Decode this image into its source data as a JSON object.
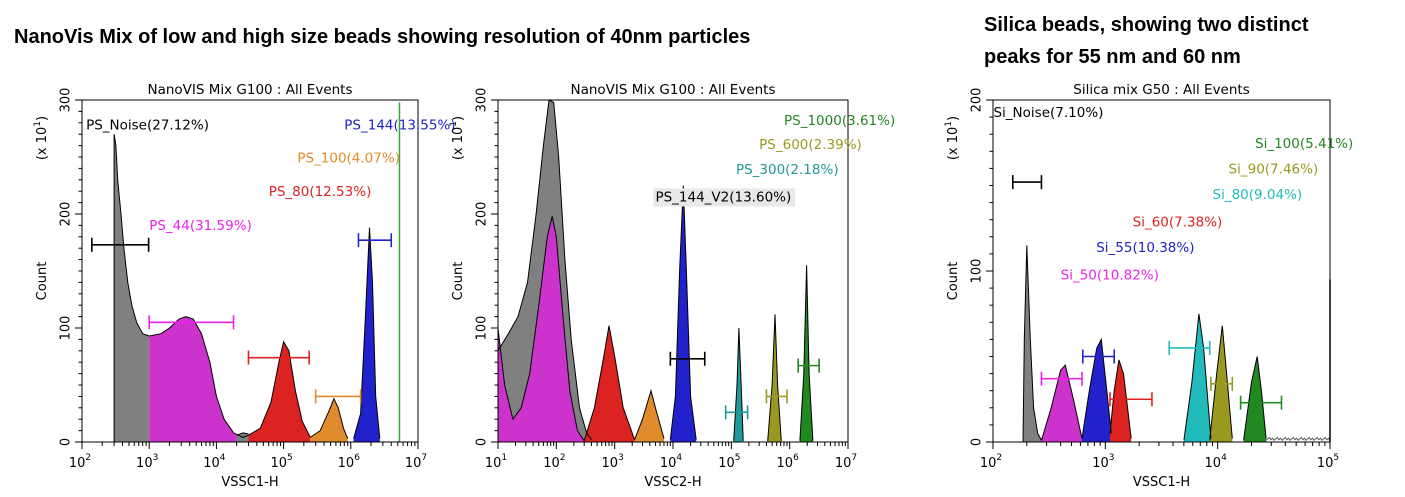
{
  "headings": {
    "left": "NanoVis Mix of low and high size beads showing resolution of 40nm particles",
    "right_line1": "Silica beads, showing two distinct",
    "right_line2": "peaks for 55 nm and 60 nm"
  },
  "chart_data": [
    {
      "type": "area",
      "title": "NanoVIS Mix G100 : All Events",
      "xlabel": "VSSC1-H",
      "ylabel": "Count",
      "y_multiplier_label": "(x 10^1)",
      "x_scale": "log",
      "xlim": [
        100,
        10000000
      ],
      "ylim": [
        0,
        300
      ],
      "x_tick_exponents": [
        2,
        3,
        4,
        5,
        6,
        7
      ],
      "y_ticks": [
        0,
        100,
        200,
        300
      ],
      "grid": false,
      "fills": [
        {
          "color": "#808080",
          "x0": 300,
          "x1": 1000,
          "points": [
            [
              300,
              0
            ],
            [
              300,
              270
            ],
            [
              320,
              260
            ],
            [
              340,
              230
            ],
            [
              380,
              200
            ],
            [
              420,
              170
            ],
            [
              480,
              140
            ],
            [
              550,
              120
            ],
            [
              650,
              105
            ],
            [
              800,
              95
            ],
            [
              1000,
              93
            ]
          ]
        },
        {
          "color": "#cc33cc",
          "x0": 1000,
          "x1": 30000,
          "points": [
            [
              1000,
              93
            ],
            [
              1500,
              95
            ],
            [
              2000,
              100
            ],
            [
              2800,
              108
            ],
            [
              3500,
              110
            ],
            [
              4500,
              108
            ],
            [
              6000,
              95
            ],
            [
              8000,
              70
            ],
            [
              10000,
              40
            ],
            [
              13000,
              20
            ],
            [
              18000,
              8
            ],
            [
              25000,
              4
            ],
            [
              30000,
              6
            ]
          ]
        },
        {
          "color": "#808080",
          "x0": 20000,
          "x1": 30000,
          "points": [
            [
              20000,
              6
            ],
            [
              25000,
              8
            ],
            [
              30000,
              7
            ]
          ]
        },
        {
          "color": "#dd2222",
          "x0": 30000,
          "x1": 250000,
          "points": [
            [
              30000,
              6
            ],
            [
              45000,
              12
            ],
            [
              65000,
              35
            ],
            [
              85000,
              70
            ],
            [
              100000,
              88
            ],
            [
              120000,
              80
            ],
            [
              150000,
              45
            ],
            [
              190000,
              18
            ],
            [
              250000,
              4
            ]
          ]
        },
        {
          "color": "#e08c2c",
          "x0": 250000,
          "x1": 900000,
          "points": [
            [
              250000,
              4
            ],
            [
              350000,
              10
            ],
            [
              480000,
              28
            ],
            [
              560000,
              38
            ],
            [
              650000,
              30
            ],
            [
              780000,
              12
            ],
            [
              900000,
              3
            ]
          ]
        },
        {
          "color": "#2222cc",
          "x0": 1100000,
          "x1": 2700000,
          "points": [
            [
              1100000,
              3
            ],
            [
              1400000,
              25
            ],
            [
              1650000,
              110
            ],
            [
              1900000,
              188
            ],
            [
              2100000,
              140
            ],
            [
              2350000,
              40
            ],
            [
              2700000,
              3
            ]
          ]
        }
      ],
      "outline_color": "#000000",
      "vertical_line": {
        "x": 5300000,
        "y_top": 298,
        "color": "#33aa33"
      },
      "gates": [
        {
          "label": "PS_Noise(27.12%)",
          "color": "#000000",
          "label_x": 115,
          "label_y": 274,
          "bar_x0": 140,
          "bar_x1": 980,
          "bar_y": 173
        },
        {
          "label": "PS_144(13.55%)",
          "color": "#2222cc",
          "label_x": 800000,
          "label_y": 274,
          "bar_x0": 1300000,
          "bar_x1": 4000000,
          "bar_y": 177
        },
        {
          "label": "PS_100(4.07%)",
          "color": "#e08c2c",
          "label_x": 160000,
          "label_y": 245,
          "bar_x0": 300000,
          "bar_x1": 1400000,
          "bar_y": 40
        },
        {
          "label": "PS_80(12.53%)",
          "color": "#dd2222",
          "label_x": 60000,
          "label_y": 216,
          "bar_x0": 30000,
          "bar_x1": 240000,
          "bar_y": 74
        },
        {
          "label": "PS_44(31.59%)",
          "color": "#ee22ee",
          "label_x": 1000,
          "label_y": 186,
          "bar_x0": 1000,
          "bar_x1": 18000,
          "bar_y": 105
        }
      ]
    },
    {
      "type": "area",
      "title": "NanoVIS Mix G100 : All Events",
      "xlabel": "VSSC2-H",
      "ylabel": "Count",
      "y_multiplier_label": "(x 10^1)",
      "x_scale": "log",
      "xlim": [
        10,
        10000000
      ],
      "ylim": [
        0,
        300
      ],
      "x_tick_exponents": [
        1,
        2,
        3,
        4,
        5,
        6,
        7
      ],
      "y_ticks": [
        0,
        100,
        200,
        300
      ],
      "grid": false,
      "fills": [
        {
          "color": "#808080",
          "x0": 10,
          "x1": 400,
          "points": [
            [
              10,
              0
            ],
            [
              10,
              80
            ],
            [
              15,
              95
            ],
            [
              22,
              110
            ],
            [
              32,
              140
            ],
            [
              45,
              200
            ],
            [
              60,
              260
            ],
            [
              75,
              300
            ],
            [
              90,
              298
            ],
            [
              110,
              250
            ],
            [
              140,
              160
            ],
            [
              180,
              90
            ],
            [
              250,
              30
            ],
            [
              330,
              8
            ],
            [
              400,
              2
            ]
          ]
        },
        {
          "color": "#cc33cc",
          "x0": 10,
          "x1": 300,
          "points": [
            [
              10,
              0
            ],
            [
              10,
              100
            ],
            [
              13,
              50
            ],
            [
              18,
              20
            ],
            [
              25,
              30
            ],
            [
              35,
              60
            ],
            [
              50,
              120
            ],
            [
              70,
              180
            ],
            [
              85,
              198
            ],
            [
              100,
              180
            ],
            [
              130,
              110
            ],
            [
              170,
              45
            ],
            [
              230,
              10
            ],
            [
              300,
              1
            ]
          ]
        },
        {
          "color": "#dd2222",
          "x0": 300,
          "x1": 2200,
          "points": [
            [
              300,
              1
            ],
            [
              450,
              30
            ],
            [
              650,
              75
            ],
            [
              800,
              102
            ],
            [
              1000,
              75
            ],
            [
              1400,
              30
            ],
            [
              2200,
              2
            ]
          ]
        },
        {
          "color": "#e08c2c",
          "x0": 2200,
          "x1": 7000,
          "points": [
            [
              2200,
              2
            ],
            [
              3000,
              20
            ],
            [
              4200,
              45
            ],
            [
              5000,
              30
            ],
            [
              7000,
              3
            ]
          ]
        },
        {
          "color": "#2222cc",
          "x0": 9000,
          "x1": 25000,
          "points": [
            [
              9000,
              2
            ],
            [
              11000,
              40
            ],
            [
              13000,
              150
            ],
            [
              15000,
              225
            ],
            [
              17000,
              150
            ],
            [
              20000,
              40
            ],
            [
              25000,
              2
            ]
          ]
        },
        {
          "color": "#229999",
          "x0": 110000,
          "x1": 160000,
          "points": [
            [
              110000,
              1
            ],
            [
              125000,
              50
            ],
            [
              135000,
              100
            ],
            [
              150000,
              40
            ],
            [
              160000,
              1
            ]
          ]
        },
        {
          "color": "#999922",
          "x0": 420000,
          "x1": 720000,
          "points": [
            [
              420000,
              1
            ],
            [
              500000,
              50
            ],
            [
              560000,
              112
            ],
            [
              620000,
              50
            ],
            [
              720000,
              1
            ]
          ]
        },
        {
          "color": "#228822",
          "x0": 1500000,
          "x1": 2500000,
          "points": [
            [
              1500000,
              1
            ],
            [
              1750000,
              60
            ],
            [
              1950000,
              155
            ],
            [
              2150000,
              60
            ],
            [
              2500000,
              1
            ]
          ]
        }
      ],
      "outline_color": "#000000",
      "gates": [
        {
          "label": "PS_1000(3.61%)",
          "color": "#228822",
          "label_x": 800000,
          "label_y": 278,
          "bar_x0": 1400000,
          "bar_x1": 3200000,
          "bar_y": 67
        },
        {
          "label": "PS_600(2.39%)",
          "color": "#999922",
          "label_x": 300000,
          "label_y": 257,
          "bar_x0": 400000,
          "bar_x1": 900000,
          "bar_y": 40
        },
        {
          "label": "PS_300(2.18%)",
          "color": "#229999",
          "label_x": 120000,
          "label_y": 235,
          "bar_x0": 80000,
          "bar_x1": 190000,
          "bar_y": 26
        },
        {
          "label": "PS_144_V2(13.60%)",
          "color": "#000000",
          "label_x": 5000,
          "label_y": 211,
          "bar_x0": 9000,
          "bar_x1": 35000,
          "bar_y": 73,
          "label_bg": "#e8e8e8"
        }
      ]
    },
    {
      "type": "area",
      "title": "Silica mix G50 : All Events",
      "xlabel": "VSSC1-H",
      "ylabel": "Count",
      "y_multiplier_label": "(x 10^1)",
      "x_scale": "log",
      "xlim": [
        100,
        100000
      ],
      "ylim": [
        0,
        200
      ],
      "x_tick_exponents": [
        2,
        3,
        4,
        5
      ],
      "y_ticks": [
        0,
        100,
        200
      ],
      "grid": false,
      "fills": [
        {
          "color": "#808080",
          "x0": 185,
          "x1": 270,
          "points": [
            [
              185,
              0
            ],
            [
              190,
              60
            ],
            [
              200,
              115
            ],
            [
              215,
              60
            ],
            [
              230,
              20
            ],
            [
              250,
              5
            ],
            [
              270,
              1
            ]
          ]
        },
        {
          "color": "#cc33cc",
          "x0": 270,
          "x1": 620,
          "points": [
            [
              270,
              1
            ],
            [
              330,
              20
            ],
            [
              400,
              42
            ],
            [
              440,
              45
            ],
            [
              520,
              25
            ],
            [
              620,
              2
            ]
          ]
        },
        {
          "color": "#2222cc",
          "x0": 620,
          "x1": 1130,
          "points": [
            [
              620,
              2
            ],
            [
              720,
              30
            ],
            [
              840,
              55
            ],
            [
              920,
              60
            ],
            [
              1030,
              30
            ],
            [
              1130,
              5
            ]
          ]
        },
        {
          "color": "#dd2222",
          "x0": 1100,
          "x1": 1700,
          "points": [
            [
              1100,
              5
            ],
            [
              1200,
              30
            ],
            [
              1320,
              48
            ],
            [
              1450,
              40
            ],
            [
              1700,
              2
            ]
          ]
        },
        {
          "color": "#22bbbb",
          "x0": 5000,
          "x1": 8700,
          "points": [
            [
              5000,
              1
            ],
            [
              5900,
              35
            ],
            [
              6800,
              75
            ],
            [
              7500,
              55
            ],
            [
              8700,
              2
            ]
          ]
        },
        {
          "color": "#999922",
          "x0": 8500,
          "x1": 13500,
          "points": [
            [
              8500,
              1
            ],
            [
              9800,
              40
            ],
            [
              11000,
              68
            ],
            [
              12000,
              40
            ],
            [
              13500,
              2
            ]
          ]
        },
        {
          "color": "#228822",
          "x0": 17000,
          "x1": 27000,
          "points": [
            [
              17000,
              1
            ],
            [
              20000,
              35
            ],
            [
              22500,
              50
            ],
            [
              24500,
              30
            ],
            [
              27000,
              2
            ]
          ]
        }
      ],
      "outline_color": "#000000",
      "tail": {
        "color": "#555555",
        "x0": 27000,
        "x1": 100000
      },
      "vertical_line": {
        "x": 100000,
        "y_top": 95,
        "color": "#000000"
      },
      "gates": [
        {
          "label": "Si_Noise(7.10%)",
          "color": "#000000",
          "label_x": 101,
          "label_y": 190,
          "bar_x0": 150,
          "bar_x1": 270,
          "bar_y": 152
        },
        {
          "label": "Si_100(5.41%)",
          "color": "#228822",
          "label_x": 21500,
          "label_y": 172,
          "bar_x0": 16000,
          "bar_x1": 37000,
          "bar_y": 23
        },
        {
          "label": "Si_90(7.46%)",
          "color": "#999922",
          "label_x": 12500,
          "label_y": 157,
          "bar_x0": 8700,
          "bar_x1": 13500,
          "bar_y": 34
        },
        {
          "label": "Si_80(9.04%)",
          "color": "#22bbbb",
          "label_x": 9000,
          "label_y": 142,
          "bar_x0": 3700,
          "bar_x1": 8500,
          "bar_y": 55
        },
        {
          "label": "Si_60(7.38%)",
          "color": "#dd2222",
          "label_x": 1750,
          "label_y": 126,
          "bar_x0": 1100,
          "bar_x1": 2600,
          "bar_y": 25
        },
        {
          "label": "Si_55(10.38%)",
          "color": "#2222cc",
          "label_x": 830,
          "label_y": 111,
          "bar_x0": 630,
          "bar_x1": 1200,
          "bar_y": 50
        },
        {
          "label": "Si_50(10.82%)",
          "color": "#ee22ee",
          "label_x": 400,
          "label_y": 95,
          "bar_x0": 270,
          "bar_x1": 620,
          "bar_y": 37
        }
      ]
    }
  ]
}
